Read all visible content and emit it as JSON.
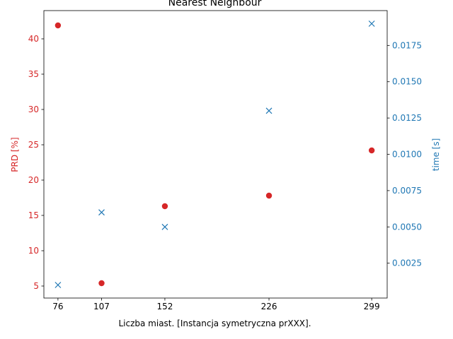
{
  "chart_data": {
    "type": "scatter",
    "title": "Nearest Neighbour",
    "xlabel": "Liczba miast. [Instancja symetryczna prXXX].",
    "x_ticks": [
      76,
      107,
      152,
      226,
      299
    ],
    "x_tick_labels": [
      "76",
      "107",
      "152",
      "226",
      "299"
    ],
    "xlim": [
      66,
      310
    ],
    "grid": false,
    "legend": "none",
    "left_axis": {
      "label": "PRD [%]",
      "color": "#d62728",
      "ylim": [
        3.3,
        44.0
      ],
      "ticks": [
        5,
        10,
        15,
        20,
        25,
        30,
        35,
        40
      ],
      "tick_labels": [
        "5",
        "10",
        "15",
        "20",
        "25",
        "30",
        "35",
        "40"
      ]
    },
    "right_axis": {
      "label": "time [s]",
      "color": "#1f77b4",
      "ylim": [
        0.0001,
        0.0199
      ],
      "ticks": [
        0.0025,
        0.005,
        0.0075,
        0.01,
        0.0125,
        0.015,
        0.0175
      ],
      "tick_labels": [
        "0.0025",
        "0.0050",
        "0.0075",
        "0.0100",
        "0.0125",
        "0.0150",
        "0.0175"
      ]
    },
    "series": [
      {
        "axis": "left",
        "marker": "circle",
        "color": "#d62728",
        "x": [
          76,
          107,
          152,
          226,
          299
        ],
        "y": [
          41.9,
          5.4,
          16.3,
          17.8,
          24.2
        ]
      },
      {
        "axis": "right",
        "marker": "x",
        "color": "#1f77b4",
        "x": [
          76,
          107,
          152,
          226,
          299
        ],
        "y": [
          0.001,
          0.006,
          0.005,
          0.013,
          0.019
        ]
      }
    ]
  }
}
